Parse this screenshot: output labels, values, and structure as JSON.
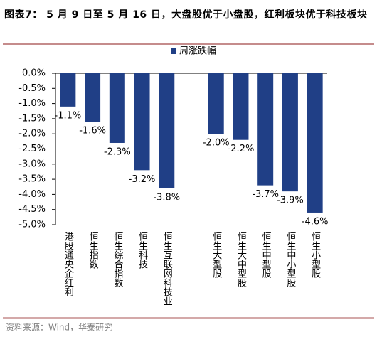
{
  "chart_data": {
    "type": "bar",
    "title": "图表7： 5 月 9 日至 5 月 16 日，大盘股优于小盘股，红利板块优于科技板块",
    "source": "资料来源：Wind，华泰研究",
    "categories": [
      "港股通央企红利",
      "恒生指数",
      "恒生综合指数",
      "恒生科技",
      "恒生互联网科技业",
      null,
      "恒生大型股",
      "恒生大中型股",
      "恒生中型股",
      "恒生中小型股",
      "恒生小型股"
    ],
    "series": [
      {
        "name": "周涨跌幅",
        "color": "#203f86",
        "values": [
          -1.1,
          -1.6,
          -2.3,
          -3.2,
          -3.8,
          null,
          -2.0,
          -2.2,
          -3.7,
          -3.9,
          -4.6
        ],
        "value_labels": [
          "-1.1%",
          "-1.6%",
          "-2.3%",
          "-3.2%",
          "-3.8%",
          null,
          "-2.0%",
          "-2.2%",
          "-3.7%",
          "-3.9%",
          "-4.6%"
        ]
      }
    ],
    "ylim": [
      -5,
      0
    ],
    "yticks": [
      {
        "value": 0,
        "label": "0.0%"
      },
      {
        "value": -0.5,
        "label": "-0.5%"
      },
      {
        "value": -1,
        "label": "-1.0%"
      },
      {
        "value": -1.5,
        "label": "-1.5%"
      },
      {
        "value": -2,
        "label": "-2.0%"
      },
      {
        "value": -2.5,
        "label": "-2.5%"
      },
      {
        "value": -3,
        "label": "-3.0%"
      },
      {
        "value": -3.5,
        "label": "-3.5%"
      },
      {
        "value": -4,
        "label": "-4.0%"
      },
      {
        "value": -4.5,
        "label": "-4.5%"
      },
      {
        "value": -5,
        "label": "-5.0%"
      }
    ],
    "legend": "top"
  }
}
